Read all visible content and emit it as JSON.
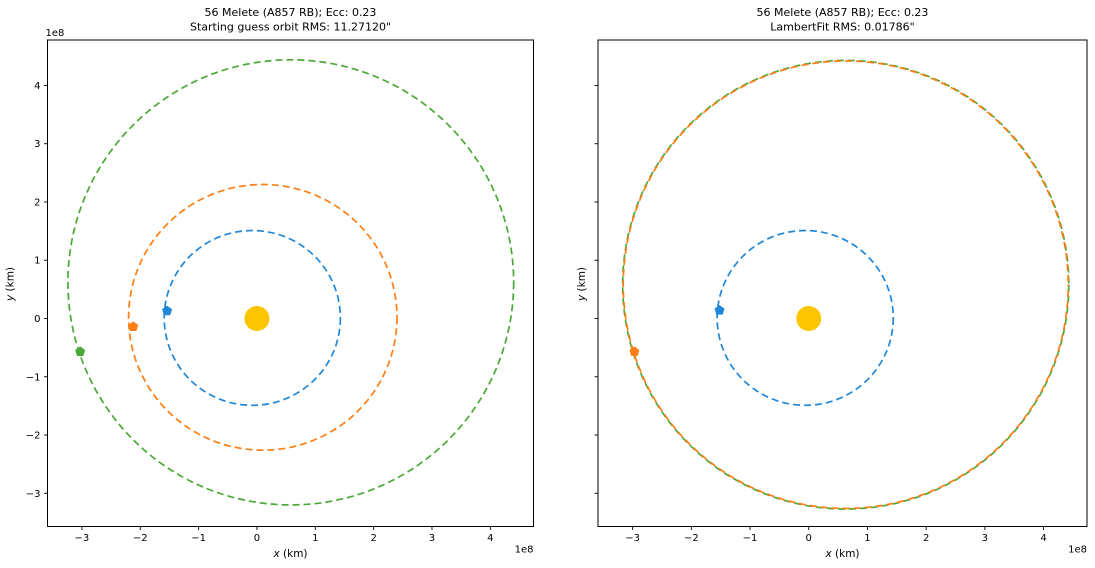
{
  "figure": {
    "background": "#ffffff",
    "axis_color": "#000000",
    "units_note": "axis values in units of 1e8 km"
  },
  "chart_data": [
    {
      "id": "starting-guess-panel",
      "type": "line",
      "title": "56 Melete (A857 RB); Ecc: 0.23",
      "subtitle": "Starting guess orbit RMS: 11.27120\"",
      "xlabel_var": "x",
      "xlabel_unit": " (km)",
      "ylabel_var": "y",
      "ylabel_unit": " (km)",
      "x_offset_text": "1e8",
      "y_offset_text": "1e8",
      "xlim": [
        -3.59,
        4.74
      ],
      "ylim": [
        -3.57,
        4.78
      ],
      "xticks": [
        -3,
        -2,
        -1,
        0,
        1,
        2,
        3,
        4
      ],
      "yticks": [
        -3,
        -2,
        -1,
        0,
        1,
        2,
        3,
        4
      ],
      "xtick_labels": [
        "−3",
        "−2",
        "−1",
        "0",
        "1",
        "2",
        "3",
        "4"
      ],
      "ytick_labels": [
        "−3",
        "−2",
        "−1",
        "0",
        "1",
        "2",
        "3",
        "4"
      ],
      "show_ytick_labels": true,
      "show_y_offset": true,
      "grid": false,
      "legend": null,
      "sun": {
        "x": 0,
        "y": 0,
        "radius_px": 12.5,
        "color": "#fdc500"
      },
      "orbits": [
        {
          "name": "observation-1-orbit",
          "color": "#2287d7",
          "cx": -0.08,
          "cy": 0.01,
          "rx": 1.51,
          "ry": 1.5,
          "dash_offset": 0,
          "marker": {
            "x": -1.54,
            "y": 0.13
          }
        },
        {
          "name": "observation-2-orbit",
          "color": "#fd7e14",
          "cx": 0.1,
          "cy": 0.02,
          "rx": 2.3,
          "ry": 2.28,
          "dash_offset": 0,
          "marker": {
            "x": -2.12,
            "y": -0.14
          }
        },
        {
          "name": "observation-3-orbit",
          "color": "#4ca838",
          "cx": 0.58,
          "cy": 0.62,
          "rx": 3.82,
          "ry": 3.82,
          "dash_offset": 0,
          "marker": {
            "x": -3.03,
            "y": -0.57
          }
        }
      ]
    },
    {
      "id": "lambert-fit-panel",
      "type": "line",
      "title": "56 Melete (A857 RB); Ecc: 0.23",
      "subtitle": "LambertFit RMS: 0.01786\"",
      "xlabel_var": "x",
      "xlabel_unit": " (km)",
      "ylabel_var": "y",
      "ylabel_unit": " (km)",
      "x_offset_text": "1e8",
      "y_offset_text": "1e8",
      "xlim": [
        -3.59,
        4.74
      ],
      "ylim": [
        -3.57,
        4.78
      ],
      "xticks": [
        -3,
        -2,
        -1,
        0,
        1,
        2,
        3,
        4
      ],
      "yticks": [
        -3,
        -2,
        -1,
        0,
        1,
        2,
        3,
        4
      ],
      "xtick_labels": [
        "−3",
        "−2",
        "−1",
        "0",
        "1",
        "2",
        "3",
        "4"
      ],
      "ytick_labels": [
        "−3",
        "−2",
        "−1",
        "0",
        "1",
        "2",
        "3",
        "4"
      ],
      "show_ytick_labels": false,
      "show_y_offset": false,
      "grid": false,
      "legend": null,
      "sun": {
        "x": 0,
        "y": 0,
        "radius_px": 12.5,
        "color": "#fdc500"
      },
      "orbits": [
        {
          "name": "fitted-orbit-green",
          "color": "#4ca838",
          "cx": 0.63,
          "cy": 0.58,
          "rx": 3.8,
          "ry": 3.85,
          "dash_offset": 0,
          "marker": null
        },
        {
          "name": "fitted-orbit-orange",
          "color": "#fd7e14",
          "cx": 0.63,
          "cy": 0.58,
          "rx": 3.79,
          "ry": 3.84,
          "dash_offset": 5.5,
          "marker": {
            "x": -2.97,
            "y": -0.57
          }
        },
        {
          "name": "observation-1-orbit",
          "color": "#2287d7",
          "cx": -0.06,
          "cy": 0.01,
          "rx": 1.5,
          "ry": 1.5,
          "dash_offset": 0,
          "marker": {
            "x": -1.52,
            "y": 0.14
          }
        }
      ]
    }
  ]
}
